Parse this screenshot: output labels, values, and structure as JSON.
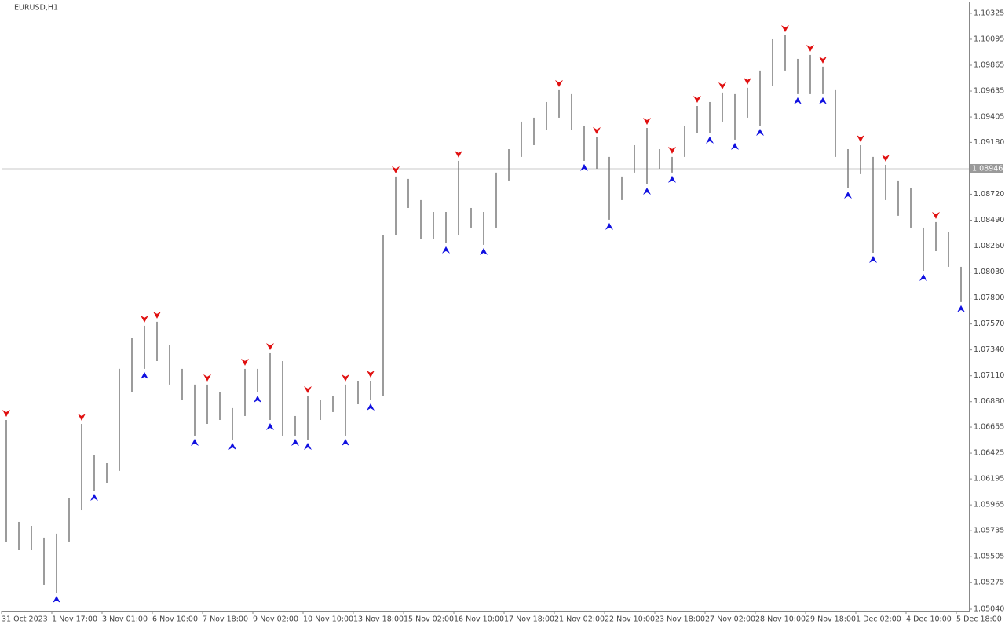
{
  "chart_data": {
    "type": "ohlc",
    "title": "EURUSD,H1",
    "categories": [
      "31 Oct 2023",
      null,
      null,
      null,
      "1 Nov 17:00",
      null,
      null,
      null,
      "3 Nov 01:00",
      null,
      null,
      null,
      "6 Nov 10:00",
      null,
      null,
      null,
      "7 Nov 18:00",
      null,
      null,
      null,
      "9 Nov 02:00",
      null,
      null,
      null,
      "10 Nov 10:00",
      null,
      null,
      null,
      "13 Nov 18:00",
      null,
      null,
      null,
      "15 Nov 02:00",
      null,
      null,
      null,
      "16 Nov 10:00",
      null,
      null,
      null,
      "17 Nov 18:00",
      null,
      null,
      null,
      "21 Nov 02:00",
      null,
      null,
      null,
      "22 Nov 10:00",
      null,
      null,
      null,
      "23 Nov 18:00",
      null,
      null,
      null,
      "27 Nov 02:00",
      null,
      null,
      null,
      "28 Nov 10:00",
      null,
      null,
      null,
      "29 Nov 18:00",
      null,
      null,
      null,
      "1 Dec 02:00",
      null,
      null,
      null,
      "4 Dec 10:00",
      null,
      null,
      null,
      "5 Dec 18:00"
    ],
    "high": [
      1.06718,
      1.05813,
      1.05778,
      1.05674,
      1.05709,
      1.06022,
      1.06683,
      1.06405,
      1.06335,
      1.07171,
      1.07449,
      1.07554,
      1.07589,
      1.0738,
      1.07171,
      1.07032,
      1.07032,
      1.06962,
      1.06823,
      1.07171,
      1.07171,
      1.0731,
      1.0724,
      1.06753,
      1.06927,
      1.06892,
      1.06927,
      1.07032,
      1.07066,
      1.07066,
      1.08354,
      1.08877,
      1.08856,
      1.08668,
      1.08563,
      1.08563,
      1.09016,
      1.08598,
      1.08563,
      1.08912,
      1.0912,
      1.09364,
      1.09399,
      1.09538,
      1.09643,
      1.09608,
      1.09329,
      1.09225,
      1.09051,
      1.08877,
      1.09155,
      1.09308,
      1.0912,
      1.09051,
      1.09329,
      1.09503,
      1.09538,
      1.09622,
      1.09608,
      1.09664,
      1.09817,
      1.10095,
      1.1013,
      1.09921,
      1.09956,
      1.09852,
      1.09643,
      1.0912,
      1.09155,
      1.09051,
      1.08981,
      1.08842,
      1.08772,
      1.08424,
      1.08473,
      1.08389,
      1.08076
    ],
    "low": [
      1.05639,
      1.05569,
      1.05569,
      1.05256,
      1.05186,
      1.05639,
      1.05917,
      1.06091,
      1.06161,
      1.06266,
      1.06962,
      1.07171,
      1.0724,
      1.07032,
      1.06892,
      1.06579,
      1.06683,
      1.06718,
      1.06544,
      1.06753,
      1.06962,
      1.06718,
      1.06579,
      1.06579,
      1.06544,
      1.06718,
      1.06788,
      1.06579,
      1.06857,
      1.06892,
      1.06927,
      1.08354,
      1.08598,
      1.0832,
      1.0832,
      1.08285,
      1.08354,
      1.08424,
      1.08271,
      1.08424,
      1.08842,
      1.09051,
      1.09155,
      1.09294,
      1.09399,
      1.09294,
      1.09016,
      1.08946,
      1.08494,
      1.08668,
      1.08912,
      1.08807,
      1.08946,
      1.08912,
      1.09051,
      1.0926,
      1.0926,
      1.09364,
      1.09204,
      1.09399,
      1.09329,
      1.09677,
      1.09817,
      1.09608,
      1.09608,
      1.09608,
      1.09051,
      1.08772,
      1.08898,
      1.08201,
      1.08668,
      1.08529,
      1.08424,
      1.08041,
      1.08215,
      1.08076,
      1.07763
    ],
    "up_fractals": [
      1.06718,
      null,
      null,
      null,
      null,
      null,
      1.06683,
      null,
      null,
      null,
      null,
      1.07554,
      1.07589,
      null,
      null,
      null,
      1.07032,
      null,
      null,
      1.07171,
      null,
      1.0731,
      null,
      null,
      1.06927,
      null,
      null,
      1.07032,
      null,
      1.07066,
      null,
      1.08877,
      null,
      null,
      null,
      null,
      1.09016,
      null,
      null,
      null,
      null,
      null,
      null,
      null,
      1.09643,
      null,
      null,
      1.09225,
      null,
      null,
      null,
      1.09308,
      null,
      1.09051,
      null,
      1.09503,
      null,
      1.09622,
      null,
      1.09664,
      null,
      null,
      1.1013,
      null,
      1.09956,
      1.09852,
      null,
      null,
      1.09155,
      null,
      1.08981,
      null,
      null,
      null,
      1.08473,
      null,
      null
    ],
    "down_fractals": [
      null,
      null,
      null,
      null,
      1.05186,
      null,
      null,
      1.06091,
      null,
      null,
      null,
      1.07171,
      null,
      null,
      null,
      1.06579,
      null,
      null,
      1.06544,
      null,
      1.06962,
      1.06718,
      null,
      1.06579,
      1.06544,
      null,
      null,
      1.06579,
      null,
      1.06892,
      null,
      null,
      null,
      null,
      null,
      1.08285,
      null,
      null,
      1.08271,
      null,
      null,
      null,
      null,
      null,
      null,
      null,
      1.09016,
      null,
      1.08494,
      null,
      null,
      1.08807,
      null,
      1.08912,
      null,
      null,
      1.0926,
      null,
      1.09204,
      null,
      1.09329,
      null,
      null,
      1.09608,
      null,
      1.09608,
      null,
      1.08772,
      null,
      1.08201,
      null,
      null,
      null,
      1.08041,
      null,
      null,
      1.07763
    ],
    "bar_color": "#7a7a7a",
    "up_color": "#e01010",
    "down_color": "#1010e0",
    "current_price": 1.08946,
    "ylim": [
      1.05026,
      1.10422
    ],
    "yticks": [
      1.10325,
      1.10095,
      1.09865,
      1.09635,
      1.09405,
      {
        "value": 1.0918,
        "label": "1.09180"
      },
      {
        "value": 1.0872,
        "label": "1.08720"
      },
      {
        "value": 1.0849,
        "label": "1.08490"
      },
      {
        "value": 1.0826,
        "label": "1.08260"
      },
      {
        "value": 1.0803,
        "label": "1.08030"
      },
      {
        "value": 1.078,
        "label": "1.07800"
      },
      {
        "value": 1.0757,
        "label": "1.07570"
      },
      {
        "value": 1.0734,
        "label": "1.07340"
      },
      {
        "value": 1.0711,
        "label": "1.07110"
      },
      {
        "value": 1.0688,
        "label": "1.06880"
      },
      1.06655,
      1.06425,
      1.06195,
      1.05965,
      1.05735,
      1.05505,
      1.05275,
      {
        "value": 1.0504,
        "label": "1.05040"
      }
    ]
  }
}
